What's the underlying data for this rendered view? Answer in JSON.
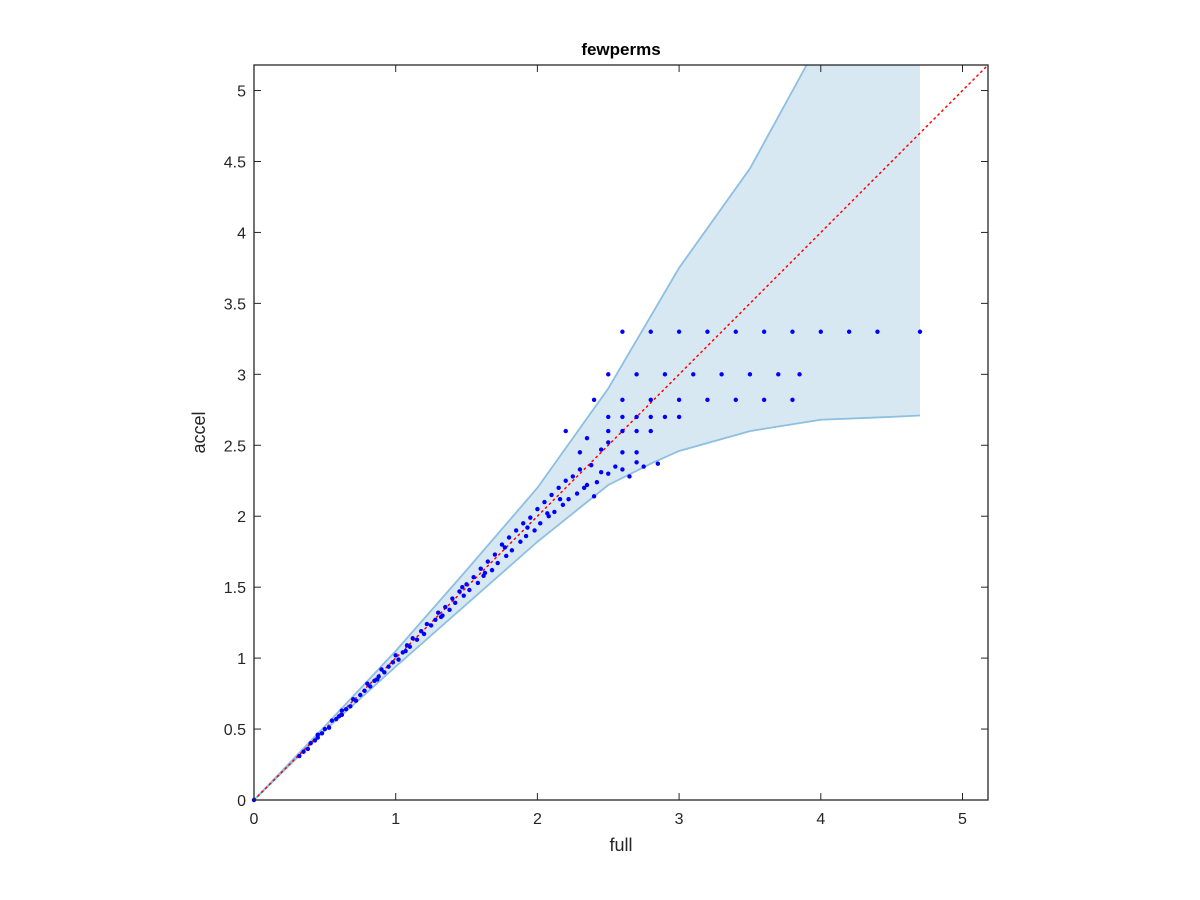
{
  "chart_data": {
    "type": "scatter",
    "title": "fewperms",
    "xlabel": "full",
    "ylabel": "accel",
    "xlim": [
      0,
      5.18
    ],
    "ylim": [
      0,
      5.18
    ],
    "x_ticks": [
      0,
      1,
      2,
      3,
      4,
      5
    ],
    "x_tick_labels": [
      "0",
      "1",
      "2",
      "3",
      "4",
      "5"
    ],
    "y_ticks": [
      0,
      0.5,
      1,
      1.5,
      2,
      2.5,
      3,
      3.5,
      4,
      4.5,
      5
    ],
    "y_tick_labels": [
      "0",
      "0.5",
      "1",
      "1.5",
      "2",
      "2.5",
      "3",
      "3.5",
      "4",
      "4.5",
      "5"
    ],
    "grid": false,
    "box": true,
    "colors": {
      "points": "#0000ff",
      "band_fill": "#d7e8f3",
      "band_edge": "#8dbfe0",
      "reference_line": "#ff0000",
      "axes": "#262626"
    },
    "reference_line": {
      "x": [
        0,
        5.18
      ],
      "y": [
        0,
        5.18
      ],
      "style": "dotted"
    },
    "band": {
      "x_end": 4.7,
      "upper": [
        [
          0,
          0
        ],
        [
          0.5,
          0.52
        ],
        [
          1,
          1.05
        ],
        [
          1.5,
          1.62
        ],
        [
          2,
          2.2
        ],
        [
          2.5,
          2.9
        ],
        [
          3,
          3.75
        ],
        [
          3.5,
          4.45
        ],
        [
          3.9,
          5.18
        ],
        [
          4.7,
          5.18
        ]
      ],
      "lower": [
        [
          0,
          0
        ],
        [
          0.5,
          0.49
        ],
        [
          1,
          0.94
        ],
        [
          1.5,
          1.38
        ],
        [
          2,
          1.82
        ],
        [
          2.5,
          2.22
        ],
        [
          2.8,
          2.37
        ],
        [
          3,
          2.46
        ],
        [
          3.5,
          2.6
        ],
        [
          4,
          2.68
        ],
        [
          4.5,
          2.7
        ],
        [
          4.7,
          2.71
        ]
      ]
    },
    "series": [
      {
        "values": [
          [
            0,
            0
          ],
          [
            0.32,
            0.31
          ],
          [
            0.35,
            0.34
          ],
          [
            0.38,
            0.36
          ],
          [
            0.4,
            0.4
          ],
          [
            0.43,
            0.42
          ],
          [
            0.45,
            0.44
          ],
          [
            0.48,
            0.47
          ],
          [
            0.5,
            0.5
          ],
          [
            0.53,
            0.51
          ],
          [
            0.55,
            0.56
          ],
          [
            0.58,
            0.57
          ],
          [
            0.6,
            0.59
          ],
          [
            0.62,
            0.63
          ],
          [
            0.65,
            0.64
          ],
          [
            0.68,
            0.66
          ],
          [
            0.7,
            0.71
          ],
          [
            0.72,
            0.7
          ],
          [
            0.75,
            0.74
          ],
          [
            0.78,
            0.77
          ],
          [
            0.8,
            0.82
          ],
          [
            0.82,
            0.8
          ],
          [
            0.85,
            0.84
          ],
          [
            0.88,
            0.87
          ],
          [
            0.9,
            0.92
          ],
          [
            0.92,
            0.9
          ],
          [
            0.95,
            0.94
          ],
          [
            0.98,
            0.97
          ],
          [
            1.0,
            1.02
          ],
          [
            1.02,
            0.99
          ],
          [
            1.05,
            1.04
          ],
          [
            1.08,
            1.09
          ],
          [
            1.1,
            1.08
          ],
          [
            1.12,
            1.14
          ],
          [
            1.15,
            1.13
          ],
          [
            1.18,
            1.19
          ],
          [
            1.2,
            1.17
          ],
          [
            1.22,
            1.24
          ],
          [
            1.25,
            1.23
          ],
          [
            1.28,
            1.27
          ],
          [
            1.3,
            1.32
          ],
          [
            1.32,
            1.29
          ],
          [
            1.35,
            1.36
          ],
          [
            1.38,
            1.34
          ],
          [
            1.4,
            1.42
          ],
          [
            1.42,
            1.39
          ],
          [
            1.45,
            1.47
          ],
          [
            1.48,
            1.44
          ],
          [
            1.5,
            1.52
          ],
          [
            1.52,
            1.48
          ],
          [
            1.55,
            1.57
          ],
          [
            1.58,
            1.53
          ],
          [
            1.6,
            1.63
          ],
          [
            1.62,
            1.58
          ],
          [
            1.65,
            1.68
          ],
          [
            1.68,
            1.62
          ],
          [
            1.7,
            1.73
          ],
          [
            1.72,
            1.67
          ],
          [
            1.75,
            1.8
          ],
          [
            1.78,
            1.72
          ],
          [
            1.8,
            1.85
          ],
          [
            1.82,
            1.76
          ],
          [
            1.85,
            1.9
          ],
          [
            1.88,
            1.82
          ],
          [
            1.9,
            1.95
          ],
          [
            1.92,
            1.86
          ],
          [
            1.95,
            1.99
          ],
          [
            1.98,
            1.9
          ],
          [
            2.0,
            2.05
          ],
          [
            2.02,
            1.95
          ],
          [
            2.05,
            2.1
          ],
          [
            2.08,
            2.0
          ],
          [
            2.1,
            2.15
          ],
          [
            2.12,
            2.03
          ],
          [
            2.15,
            2.2
          ],
          [
            2.18,
            2.08
          ],
          [
            2.2,
            2.25
          ],
          [
            2.22,
            2.12
          ],
          [
            2.25,
            2.28
          ],
          [
            2.28,
            2.16
          ],
          [
            2.3,
            2.33
          ],
          [
            2.35,
            2.22
          ],
          [
            2.38,
            2.36
          ],
          [
            2.42,
            2.24
          ],
          [
            2.45,
            2.31
          ],
          [
            2.5,
            2.3
          ],
          [
            2.55,
            2.35
          ],
          [
            2.6,
            2.33
          ],
          [
            2.65,
            2.28
          ],
          [
            2.7,
            2.38
          ],
          [
            2.75,
            2.35
          ],
          [
            2.85,
            2.37
          ],
          [
            2.2,
            2.6
          ],
          [
            0.45,
            0.46
          ],
          [
            0.62,
            0.6
          ],
          [
            0.87,
            0.85
          ],
          [
            1.07,
            1.05
          ],
          [
            1.33,
            1.3
          ],
          [
            1.47,
            1.5
          ],
          [
            1.63,
            1.6
          ],
          [
            1.77,
            1.78
          ],
          [
            1.93,
            1.92
          ],
          [
            2.07,
            2.02
          ],
          [
            2.16,
            2.12
          ],
          [
            2.33,
            2.2
          ],
          [
            2.4,
            2.14
          ],
          [
            2.45,
            2.47
          ],
          [
            2.5,
            2.52
          ],
          [
            2.3,
            2.45
          ],
          [
            2.6,
            2.45
          ],
          [
            2.7,
            2.45
          ],
          [
            2.35,
            2.55
          ],
          [
            2.5,
            2.6
          ],
          [
            2.6,
            2.6
          ],
          [
            2.7,
            2.6
          ],
          [
            2.8,
            2.6
          ],
          [
            2.5,
            2.7
          ],
          [
            2.6,
            2.7
          ],
          [
            2.7,
            2.7
          ],
          [
            2.8,
            2.7
          ],
          [
            2.9,
            2.7
          ],
          [
            3.0,
            2.7
          ],
          [
            2.4,
            2.82
          ],
          [
            2.6,
            2.82
          ],
          [
            2.8,
            2.82
          ],
          [
            3.0,
            2.82
          ],
          [
            3.2,
            2.82
          ],
          [
            3.4,
            2.82
          ],
          [
            3.6,
            2.82
          ],
          [
            3.8,
            2.82
          ],
          [
            2.5,
            3.0
          ],
          [
            2.7,
            3.0
          ],
          [
            2.9,
            3.0
          ],
          [
            3.1,
            3.0
          ],
          [
            3.3,
            3.0
          ],
          [
            3.5,
            3.0
          ],
          [
            3.7,
            3.0
          ],
          [
            3.85,
            3.0
          ],
          [
            2.6,
            3.3
          ],
          [
            2.8,
            3.3
          ],
          [
            3.0,
            3.3
          ],
          [
            3.2,
            3.3
          ],
          [
            3.4,
            3.3
          ],
          [
            3.6,
            3.3
          ],
          [
            3.8,
            3.3
          ],
          [
            4.0,
            3.3
          ],
          [
            4.2,
            3.3
          ],
          [
            4.4,
            3.3
          ],
          [
            4.7,
            3.3
          ]
        ]
      }
    ]
  }
}
